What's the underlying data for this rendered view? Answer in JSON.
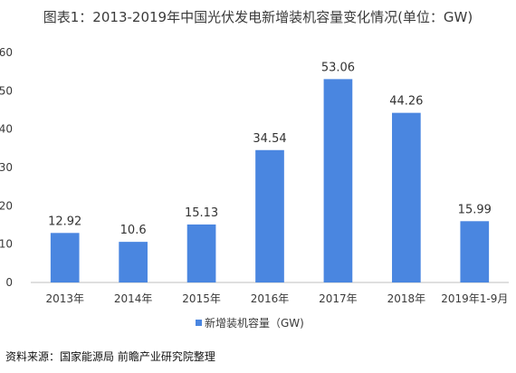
{
  "title": "图表1：2013-2019年中国光伏发电新增装机容量变化情况(单位：GW)",
  "source": "资料来源：国家能源局 前瞻产业研究院整理",
  "colors": {
    "bar": "#4a86e0",
    "axis": "#bfbfbf",
    "tick_text": "#3a3a3a",
    "label_text": "#333333"
  },
  "chart_data": {
    "type": "bar",
    "title": "图表1：2013-2019年中国光伏发电新增装机容量变化情况(单位：GW)",
    "xlabel": "",
    "ylabel": "",
    "categories": [
      "2013年",
      "2014年",
      "2015年",
      "2016年",
      "2017年",
      "2018年",
      "2019年1-9月"
    ],
    "series": [
      {
        "name": "新增装机容量（GW)",
        "values": [
          12.92,
          10.6,
          15.13,
          34.54,
          53.06,
          44.26,
          15.99
        ]
      }
    ],
    "value_labels": [
      "12.92",
      "10.6",
      "15.13",
      "34.54",
      "53.06",
      "44.26",
      "15.99"
    ],
    "y_ticks": [
      "0",
      "10",
      "20",
      "30",
      "40",
      "50",
      "60"
    ],
    "ylim": [
      0,
      60
    ],
    "grid": false,
    "legend_position": "bottom"
  }
}
